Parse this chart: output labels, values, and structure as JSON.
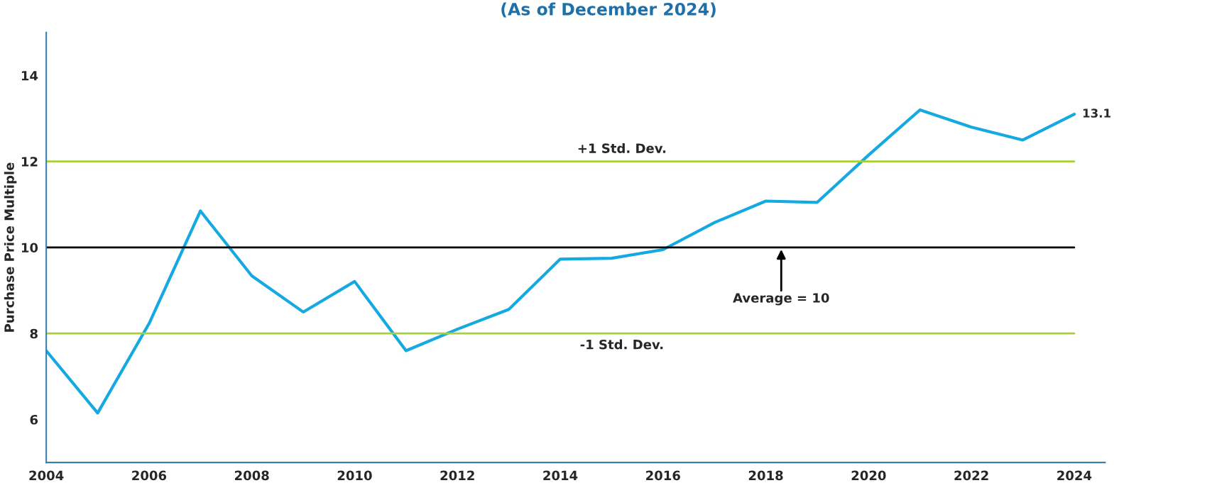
{
  "chart_data": {
    "type": "line",
    "title": "(As of December 2024)",
    "ylabel": "Purchase Price Multiple",
    "x": [
      2004,
      2005,
      2006,
      2007,
      2008,
      2009,
      2010,
      2011,
      2012,
      2013,
      2014,
      2015,
      2016,
      2017,
      2018,
      2019,
      2020,
      2021,
      2022,
      2023,
      2024
    ],
    "series": [
      {
        "color": "#14a9e1",
        "values": [
          7.6,
          6.15,
          8.23,
          10.85,
          9.34,
          8.5,
          9.21,
          7.6,
          8.1,
          8.56,
          9.73,
          9.75,
          9.95,
          10.58,
          11.08,
          11.05,
          12.15,
          13.2,
          12.8,
          12.5,
          13.1
        ],
        "value_labels": [
          null,
          null,
          null,
          null,
          null,
          null,
          null,
          null,
          null,
          null,
          null,
          null,
          null,
          null,
          null,
          null,
          null,
          null,
          null,
          null,
          "13.1"
        ]
      }
    ],
    "xlim": [
      2004,
      2024.6
    ],
    "xticks": [
      2004,
      2006,
      2008,
      2010,
      2012,
      2014,
      2016,
      2018,
      2020,
      2022,
      2024
    ],
    "ylim": [
      5,
      15
    ],
    "yticks": [
      6,
      8,
      10,
      12,
      14
    ],
    "ref_lines": [
      {
        "axis": "y",
        "value": 12,
        "label": "+1 Std. Dev.",
        "color": "#a8cf38"
      },
      {
        "axis": "y",
        "value": 10,
        "label": "Average = 10",
        "color": "#000000"
      },
      {
        "axis": "y",
        "value": 8,
        "label": "-1 Std. Dev.",
        "color": "#a8cf38"
      }
    ],
    "grid": false,
    "legend": false,
    "marker": "none",
    "line_style": "solid"
  }
}
